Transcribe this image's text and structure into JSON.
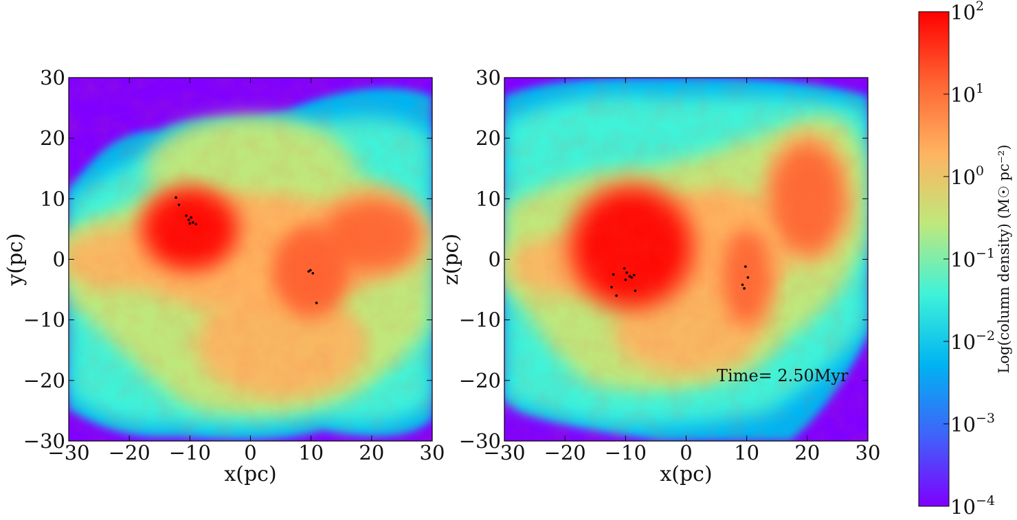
{
  "chart_data": {
    "type": "heatmap",
    "time_annotation": "Time= 2.50Myr",
    "panels": [
      {
        "xlabel": "x(pc)",
        "ylabel": "y(pc)",
        "xlim": [
          -30,
          30
        ],
        "ylim": [
          -30,
          30
        ],
        "xticks": [
          -30,
          -20,
          -10,
          0,
          10,
          20,
          30
        ],
        "yticks": [
          -30,
          -20,
          -10,
          0,
          10,
          20,
          30
        ],
        "xtick_labels": [
          "−30",
          "−20",
          "−10",
          "0",
          "10",
          "20",
          "30"
        ],
        "ytick_labels": [
          "−30",
          "−20",
          "−10",
          "0",
          "10",
          "20",
          "30"
        ],
        "dense_regions": [
          {
            "x": -10,
            "y": 5,
            "rx": 7,
            "ry": 6,
            "log_density": 1.6
          },
          {
            "x": 10,
            "y": -2,
            "rx": 5,
            "ry": 6,
            "log_density": 1.4
          },
          {
            "x": 0,
            "y": 1,
            "rx": 17,
            "ry": 8,
            "log_density": 0.7
          },
          {
            "x": 20,
            "y": 4,
            "rx": 8,
            "ry": 6,
            "log_density": 0.8
          },
          {
            "x": -22,
            "y": 0,
            "rx": 9,
            "ry": 5,
            "log_density": 0.3
          },
          {
            "x": 5,
            "y": -14,
            "rx": 14,
            "ry": 9,
            "log_density": 0.1
          },
          {
            "x": 0,
            "y": 15,
            "rx": 14,
            "ry": 7,
            "log_density": -0.4
          }
        ],
        "sink_particles": [
          {
            "x": -12.3,
            "y": 10.2
          },
          {
            "x": -11.8,
            "y": 9.0
          },
          {
            "x": -10.6,
            "y": 7.2
          },
          {
            "x": -10.2,
            "y": 6.5
          },
          {
            "x": -9.8,
            "y": 6.9
          },
          {
            "x": -9.5,
            "y": 6.1
          },
          {
            "x": -9.0,
            "y": 5.8
          },
          {
            "x": -10.0,
            "y": 5.9
          },
          {
            "x": 9.6,
            "y": -2.0
          },
          {
            "x": 9.9,
            "y": -1.8
          },
          {
            "x": 10.3,
            "y": -2.3
          },
          {
            "x": 10.9,
            "y": -7.2
          }
        ]
      },
      {
        "xlabel": "x(pc)",
        "ylabel": "z(pc)",
        "xlim": [
          -30,
          30
        ],
        "ylim": [
          -30,
          30
        ],
        "xticks": [
          -30,
          -20,
          -10,
          0,
          10,
          20,
          30
        ],
        "yticks": [
          -30,
          -20,
          -10,
          0,
          10,
          20,
          30
        ],
        "xtick_labels": [
          "−30",
          "−20",
          "−10",
          "0",
          "10",
          "20",
          "30"
        ],
        "ytick_labels": [
          "−30",
          "−20",
          "−10",
          "0",
          "10",
          "20",
          "30"
        ],
        "dense_regions": [
          {
            "x": -9,
            "y": 2,
            "rx": 9,
            "ry": 9,
            "log_density": 1.6
          },
          {
            "x": 10,
            "y": -3,
            "rx": 4,
            "ry": 8,
            "log_density": 1.3
          },
          {
            "x": 20,
            "y": 10,
            "rx": 6,
            "ry": 9,
            "log_density": 1.0
          },
          {
            "x": 5,
            "y": 2,
            "rx": 10,
            "ry": 8,
            "log_density": 0.7
          },
          {
            "x": -20,
            "y": -1,
            "rx": 9,
            "ry": 5,
            "log_density": 0.3
          },
          {
            "x": 0,
            "y": -12,
            "rx": 12,
            "ry": 7,
            "log_density": 0.2
          }
        ],
        "sink_particles": [
          {
            "x": -10.2,
            "y": -1.5
          },
          {
            "x": -9.8,
            "y": -2.2
          },
          {
            "x": -9.3,
            "y": -2.8
          },
          {
            "x": -10.0,
            "y": -3.4
          },
          {
            "x": -9.0,
            "y": -3.0
          },
          {
            "x": -8.6,
            "y": -2.6
          },
          {
            "x": -12.0,
            "y": -2.5
          },
          {
            "x": -12.3,
            "y": -4.6
          },
          {
            "x": -11.5,
            "y": -6.0
          },
          {
            "x": -8.4,
            "y": -5.2
          },
          {
            "x": 9.3,
            "y": -4.2
          },
          {
            "x": 9.6,
            "y": -4.8
          },
          {
            "x": 9.8,
            "y": -1.2
          },
          {
            "x": 10.2,
            "y": -3.0
          }
        ]
      }
    ],
    "colorbar": {
      "label": "Log(column density) (M☉ pc⁻²)",
      "scale": "log",
      "range": [
        -4,
        2
      ],
      "colormap": "rainbow",
      "ticks": [
        {
          "base": "10",
          "exp": "2",
          "value": 2
        },
        {
          "base": "10",
          "exp": "1",
          "value": 1
        },
        {
          "base": "10",
          "exp": "0",
          "value": 0
        },
        {
          "base": "10",
          "exp": "−1",
          "value": -1
        },
        {
          "base": "10",
          "exp": "−2",
          "value": -2
        },
        {
          "base": "10",
          "exp": "−3",
          "value": -3
        },
        {
          "base": "10",
          "exp": "−4",
          "value": -4
        }
      ],
      "colors": [
        "#7f00ff",
        "#3f63f9",
        "#00b3f2",
        "#3ff2d8",
        "#bfe87c",
        "#ffb360",
        "#ff6432",
        "#ff0000"
      ]
    }
  }
}
